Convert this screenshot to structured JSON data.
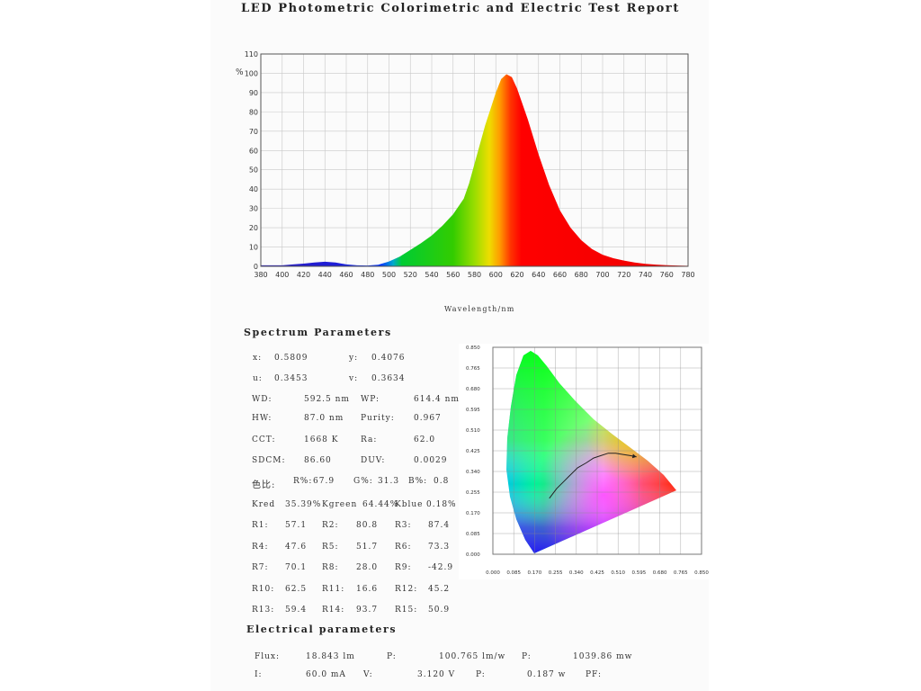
{
  "report": {
    "title": "LED Photometric Colorimetric and Electric Test Report",
    "wavelength_label": "Wavelength/nm",
    "y_unit": "%"
  },
  "chart_data": [
    {
      "type": "area",
      "description_from_axes": "relative spectral power distribution",
      "xlabel": "Wavelength/nm",
      "ylabel": "%",
      "xlim": [
        380,
        780
      ],
      "ylim": [
        0,
        110
      ],
      "x_ticks": [
        380,
        400,
        420,
        440,
        460,
        480,
        500,
        520,
        540,
        560,
        580,
        600,
        620,
        640,
        660,
        680,
        700,
        720,
        740,
        760,
        780
      ],
      "y_ticks": [
        0,
        10,
        20,
        30,
        40,
        50,
        60,
        70,
        80,
        90,
        100,
        110
      ],
      "x": [
        380,
        390,
        400,
        410,
        420,
        430,
        440,
        450,
        460,
        470,
        480,
        490,
        500,
        510,
        520,
        530,
        540,
        550,
        560,
        570,
        575,
        580,
        590,
        600,
        605,
        610,
        615,
        620,
        630,
        640,
        650,
        660,
        670,
        680,
        690,
        700,
        710,
        720,
        730,
        740,
        750,
        760,
        770,
        780
      ],
      "y": [
        0.5,
        0.5,
        0.5,
        1.0,
        1.4,
        2.0,
        2.4,
        2.0,
        1.0,
        0.5,
        0.4,
        0.8,
        2.5,
        5.0,
        8.5,
        12.0,
        16.0,
        21.0,
        27.0,
        35.0,
        43.0,
        53.0,
        73.0,
        90.0,
        97.0,
        99.5,
        98.0,
        92.0,
        76.0,
        58.0,
        42.0,
        29.0,
        20.0,
        13.5,
        9.0,
        6.0,
        4.2,
        3.0,
        2.0,
        1.3,
        0.9,
        0.6,
        0.4,
        0.3
      ],
      "grid": true
    },
    {
      "type": "scatter",
      "description_from_axes": "CIE 1931 chromaticity diagram",
      "x_ticks": [
        "0.000",
        "0.085",
        "0.170",
        "0.255",
        "0.340",
        "0.425",
        "0.510",
        "0.595",
        "0.680",
        "0.765",
        "0.850"
      ],
      "y_ticks": [
        "0.000",
        "0.085",
        "0.170",
        "0.255",
        "0.340",
        "0.425",
        "0.510",
        "0.595",
        "0.680",
        "0.765",
        "0.850"
      ],
      "xlim": [
        0,
        0.85
      ],
      "ylim": [
        0,
        0.85
      ],
      "planckian_locus": [
        [
          0.23,
          0.23
        ],
        [
          0.26,
          0.27
        ],
        [
          0.29,
          0.3
        ],
        [
          0.31,
          0.32
        ],
        [
          0.345,
          0.355
        ],
        [
          0.38,
          0.375
        ],
        [
          0.41,
          0.395
        ],
        [
          0.44,
          0.405
        ],
        [
          0.47,
          0.415
        ],
        [
          0.5,
          0.415
        ],
        [
          0.53,
          0.41
        ],
        [
          0.56,
          0.405
        ],
        [
          0.585,
          0.4
        ]
      ],
      "grid": true
    }
  ],
  "spectrum": {
    "title": "Spectrum Parameters",
    "x_label": "x:",
    "x_value": "0.5809",
    "y_label": "y:",
    "y_value": "0.4076",
    "u_label": "u:",
    "u_value": "0.3453",
    "v_label": "v:",
    "v_value": "0.3634",
    "wd_label": "WD:",
    "wd_value": "592.5 nm",
    "wp_label": "WP:",
    "wp_value": "614.4 nm",
    "hw_label": "HW:",
    "hw_value": "87.0 nm",
    "purity_label": "Purity:",
    "purity_value": "0.967",
    "cct_label": "CCT:",
    "cct_value": "1668 K",
    "ra_label": "Ra:",
    "ra_value": "62.0",
    "sdcm_label": "SDCM:",
    "sdcm_value": "86.60",
    "duv_label": "DUV:",
    "duv_value": "0.0029",
    "ratio_label": "色比:",
    "r_pct_label": "R%:",
    "r_pct_value": "67.9",
    "g_pct_label": "G%:",
    "g_pct_value": "31.3",
    "b_pct_label": "B%:",
    "b_pct_value": "0.8",
    "kred_label": "Kred",
    "kred_value": "35.39%",
    "kgreen_label": "Kgreen",
    "kgreen_value": "64.44%",
    "kblue_label": "Kblue",
    "kblue_value": "0.18%",
    "ri": [
      {
        "label": "R1:",
        "value": "57.1"
      },
      {
        "label": "R2:",
        "value": "80.8"
      },
      {
        "label": "R3:",
        "value": "87.4"
      },
      {
        "label": "R4:",
        "value": "47.6"
      },
      {
        "label": "R5:",
        "value": "51.7"
      },
      {
        "label": "R6:",
        "value": "73.3"
      },
      {
        "label": "R7:",
        "value": "70.1"
      },
      {
        "label": "R8:",
        "value": "28.0"
      },
      {
        "label": "R9:",
        "value": "-42.9"
      },
      {
        "label": "R10:",
        "value": "62.5"
      },
      {
        "label": "R11:",
        "value": "16.6"
      },
      {
        "label": "R12:",
        "value": "45.2"
      },
      {
        "label": "R13:",
        "value": "59.4"
      },
      {
        "label": "R14:",
        "value": "93.7"
      },
      {
        "label": "R15:",
        "value": "50.9"
      }
    ]
  },
  "electrical": {
    "title": "Electrical parameters",
    "flux_label": "Flux:",
    "flux_value": "18.843 lm",
    "eff_label": "P:",
    "eff_value": "100.765 lm/w",
    "popt_label": "P:",
    "popt_value": "1039.86 mw",
    "i_label": "I:",
    "i_value": "60.0 mA",
    "v_label": "V:",
    "v_value": "3.120 V",
    "pw_label": "P:",
    "pw_value": "0.187 w",
    "pf_label": "PF:",
    "pf_value": ""
  }
}
